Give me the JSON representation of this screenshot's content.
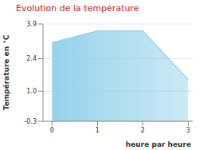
{
  "chart_data": {
    "type": "area",
    "title": "Evolution de la température",
    "x_label": "heure par heure",
    "y_label": "Température en °C",
    "x": [
      0,
      1,
      2,
      3
    ],
    "values": [
      3.1,
      3.6,
      3.6,
      1.5
    ],
    "color": "#8fd0ea",
    "xlim": [
      -0.2,
      3.1
    ],
    "xticks": [
      0,
      1,
      2,
      3
    ],
    "ylim": [
      -0.3,
      3.9
    ],
    "yticks": [
      -0.3,
      {
        "value": 1,
        "label": "1.0"
      },
      2.4,
      3.9
    ],
    "grid": true
  }
}
